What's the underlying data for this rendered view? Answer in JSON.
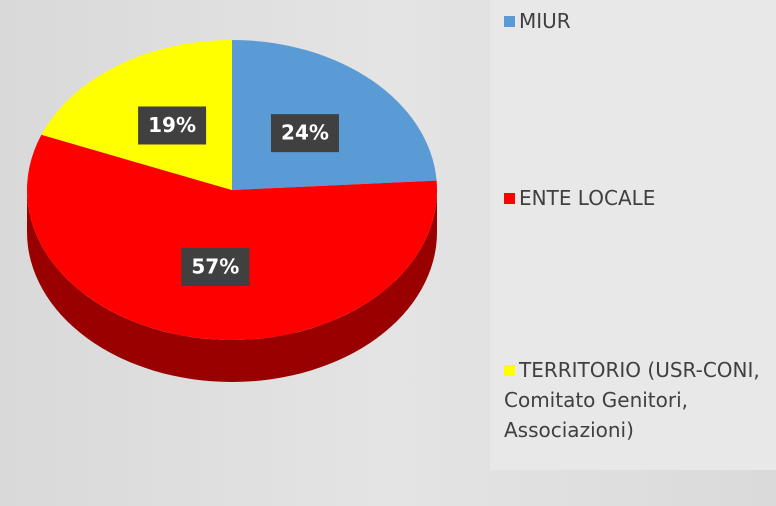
{
  "chart_data": {
    "type": "pie",
    "categories": [
      "MIUR",
      "ENTE LOCALE",
      "TERRITORIO (USR-CONI, Comitato Genitori, Associazioni)"
    ],
    "values": [
      24,
      57,
      19
    ],
    "value_labels": [
      "24%",
      "57%",
      "19%"
    ],
    "colors": [
      "#5b9bd5",
      "#ff0000",
      "#ffff00"
    ],
    "legend": "right"
  }
}
